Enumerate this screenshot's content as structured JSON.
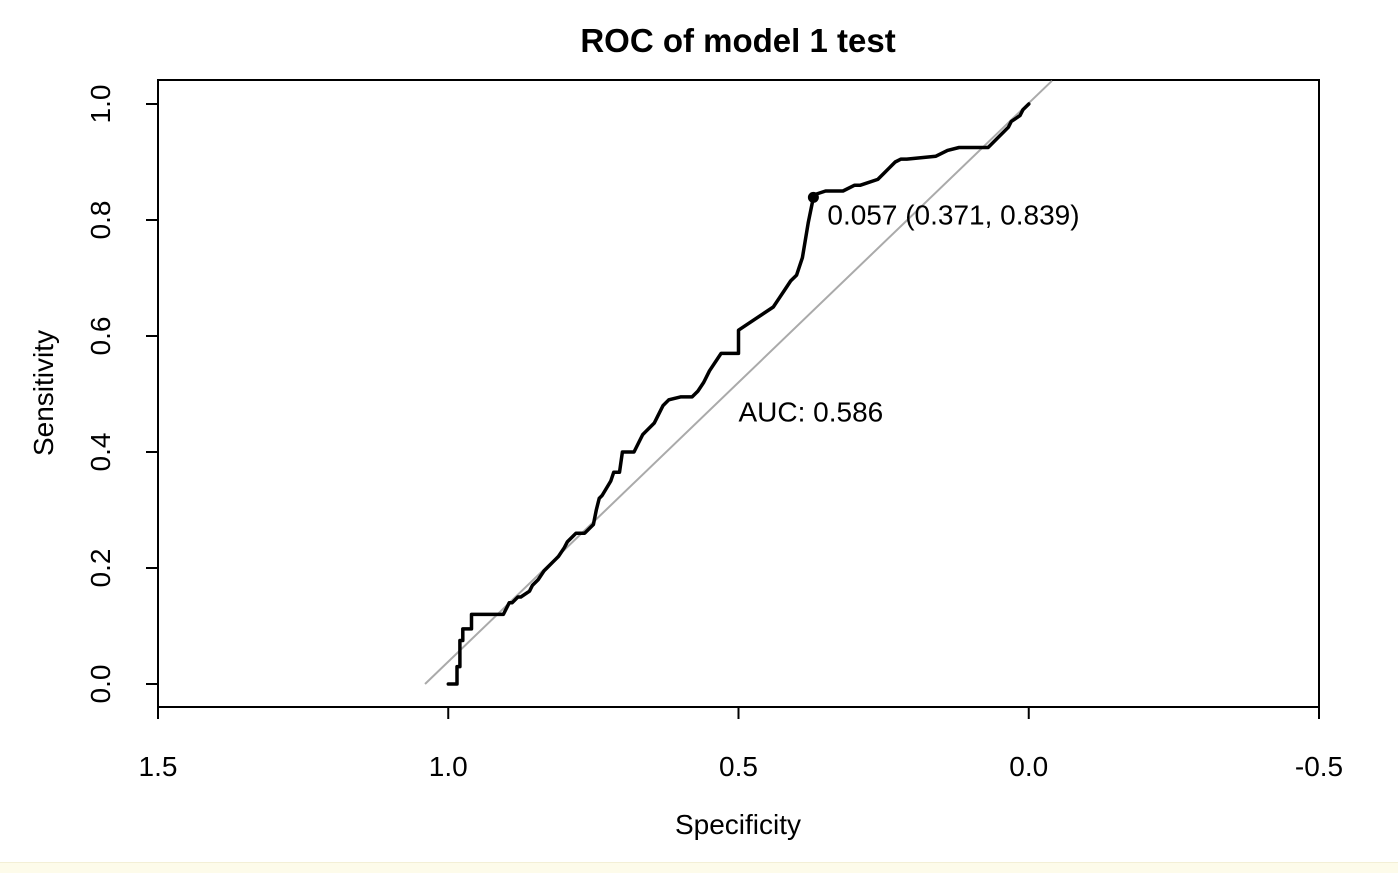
{
  "chart_data": {
    "type": "line",
    "title": "ROC of model 1 test",
    "xlabel": "Specificity",
    "ylabel": "Sensitivity",
    "xlim": [
      1.5,
      -0.5
    ],
    "ylim": [
      0.0,
      1.0
    ],
    "x_reversed": true,
    "x_ticks": [
      1.5,
      1.0,
      0.5,
      0.0,
      -0.5
    ],
    "x_tick_labels": [
      "1.5",
      "1.0",
      "0.5",
      "0.0",
      "-0.5"
    ],
    "y_ticks": [
      0.0,
      0.2,
      0.4,
      0.6,
      0.8,
      1.0
    ],
    "y_tick_labels": [
      "0.0",
      "0.2",
      "0.4",
      "0.6",
      "0.8",
      "1.0"
    ],
    "grid": false,
    "series": [
      {
        "color": "#000000",
        "x": [
          1.0,
          0.985,
          0.985,
          0.98,
          0.98,
          0.975,
          0.975,
          0.96,
          0.96,
          0.945,
          0.945,
          0.905,
          0.9,
          0.895,
          0.89,
          0.88,
          0.875,
          0.86,
          0.855,
          0.85,
          0.845,
          0.835,
          0.83,
          0.82,
          0.815,
          0.81,
          0.8,
          0.795,
          0.78,
          0.775,
          0.765,
          0.75,
          0.745,
          0.74,
          0.735,
          0.72,
          0.715,
          0.705,
          0.7,
          0.68,
          0.67,
          0.665,
          0.66,
          0.645,
          0.64,
          0.63,
          0.62,
          0.6,
          0.59,
          0.58,
          0.57,
          0.56,
          0.55,
          0.53,
          0.5,
          0.5,
          0.47,
          0.44,
          0.43,
          0.42,
          0.41,
          0.4,
          0.39,
          0.38,
          0.371,
          0.365,
          0.35,
          0.32,
          0.3,
          0.29,
          0.26,
          0.25,
          0.24,
          0.23,
          0.22,
          0.21,
          0.16,
          0.15,
          0.14,
          0.12,
          0.11,
          0.1,
          0.07,
          0.065,
          0.05,
          0.045,
          0.035,
          0.03,
          0.015,
          0.01,
          0.0
        ],
        "y": [
          0.0,
          0.0,
          0.03,
          0.03,
          0.075,
          0.075,
          0.095,
          0.095,
          0.12,
          0.12,
          0.12,
          0.12,
          0.13,
          0.14,
          0.14,
          0.15,
          0.15,
          0.16,
          0.17,
          0.175,
          0.18,
          0.195,
          0.2,
          0.21,
          0.215,
          0.22,
          0.235,
          0.245,
          0.26,
          0.26,
          0.26,
          0.275,
          0.3,
          0.32,
          0.325,
          0.35,
          0.365,
          0.365,
          0.4,
          0.4,
          0.42,
          0.43,
          0.435,
          0.45,
          0.46,
          0.48,
          0.49,
          0.495,
          0.495,
          0.495,
          0.505,
          0.52,
          0.54,
          0.57,
          0.57,
          0.61,
          0.63,
          0.65,
          0.665,
          0.68,
          0.695,
          0.705,
          0.735,
          0.795,
          0.839,
          0.845,
          0.85,
          0.85,
          0.86,
          0.86,
          0.87,
          0.88,
          0.89,
          0.9,
          0.905,
          0.905,
          0.91,
          0.915,
          0.92,
          0.925,
          0.925,
          0.925,
          0.925,
          0.93,
          0.945,
          0.95,
          0.96,
          0.97,
          0.98,
          0.99,
          1.0
        ]
      }
    ],
    "reference_line": {
      "x": [
        1.04,
        -0.04
      ],
      "y": [
        0.0,
        1.04
      ],
      "color": "#aaaaaa"
    },
    "highlight_point": {
      "x": 0.371,
      "y": 0.839,
      "label": "0.057 (0.371, 0.839)"
    },
    "annotations": [
      {
        "text": "AUC: 0.586",
        "x": 0.5,
        "y": 0.47
      }
    ]
  }
}
